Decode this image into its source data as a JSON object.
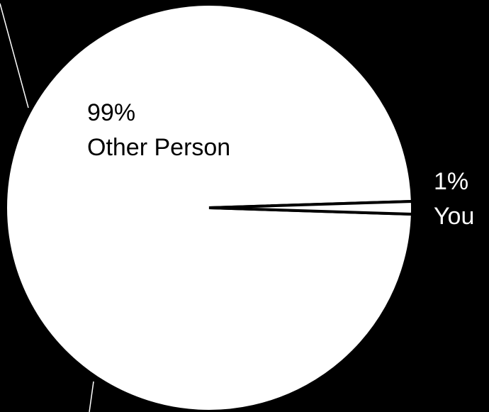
{
  "chart_data": {
    "type": "pie",
    "slices": [
      {
        "label": "Other Person",
        "percent_label": "99%",
        "value": 99,
        "color": "#ffffff"
      },
      {
        "label": "You",
        "percent_label": "1%",
        "value": 1,
        "color": "#ffffff"
      }
    ],
    "background_color": "#000000",
    "slice_color": "#ffffff",
    "edge_color": "#000000"
  }
}
